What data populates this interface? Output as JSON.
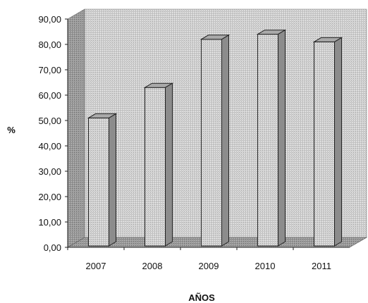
{
  "chart_data": {
    "type": "bar",
    "categories": [
      "2007",
      "2008",
      "2009",
      "2010",
      "2011"
    ],
    "values": [
      51,
      63,
      82,
      84,
      81
    ],
    "xlabel": "AÑOS",
    "ylabel": "%",
    "ylim": [
      0,
      90
    ],
    "yticks": [
      "0,00",
      "10,00",
      "20,00",
      "30,00",
      "40,00",
      "50,00",
      "60,00",
      "70,00",
      "80,00",
      "90,00"
    ],
    "grid": false,
    "style": "3d-column",
    "colors": {
      "bar_front": "#c9c9c9",
      "bar_top": "#a9a9a9",
      "bar_side": "#8c8c8c",
      "wall": "#d6d6d6",
      "floor": "#b9b9b9",
      "outline": "#222222"
    }
  }
}
